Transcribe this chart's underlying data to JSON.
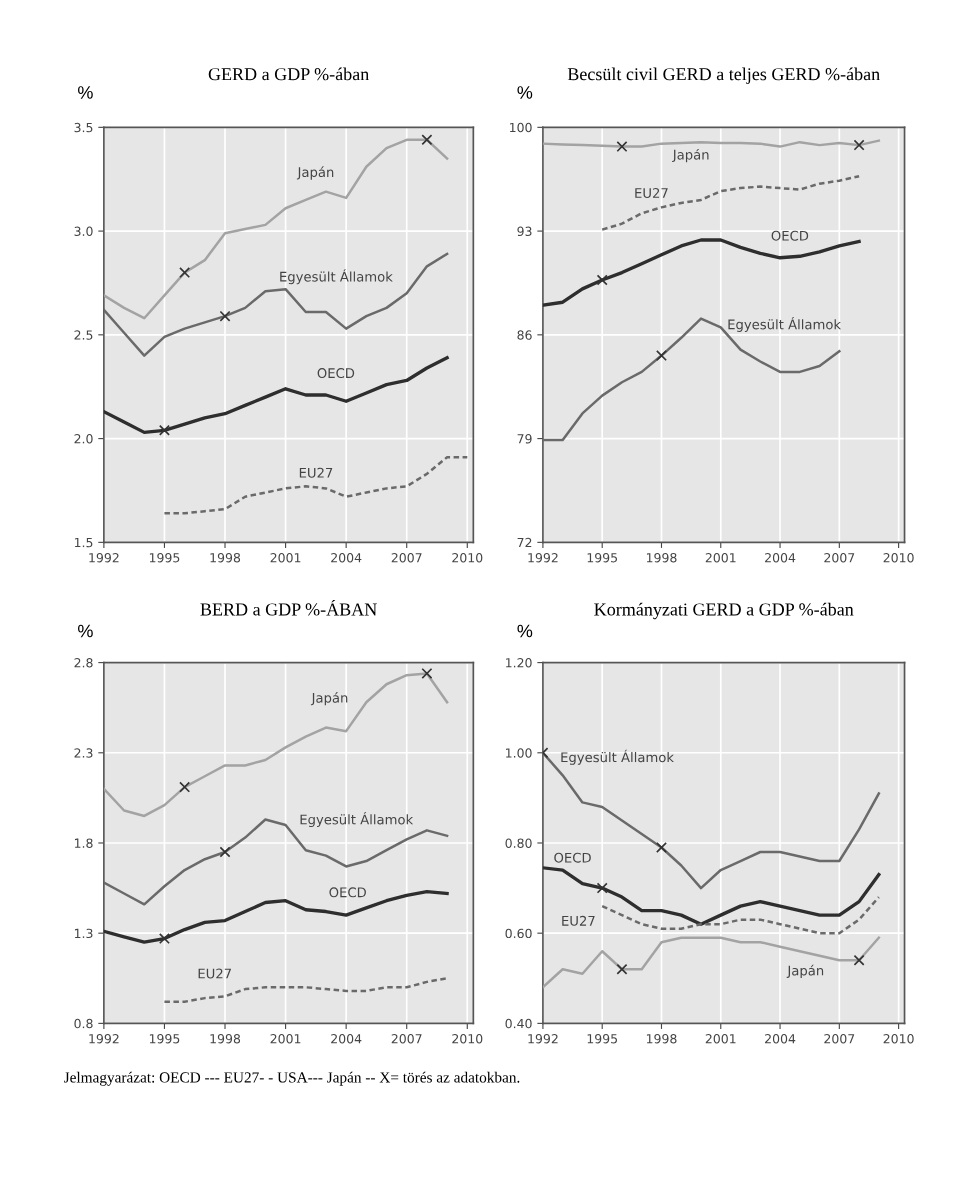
{
  "chart_data": [
    {
      "type": "line",
      "title": "GERD a GDP %-ában",
      "ylabel": "%",
      "xlim": [
        1992,
        2010.3
      ],
      "xticks": [
        1992,
        1995,
        1998,
        2001,
        2004,
        2007,
        2010
      ],
      "ylim": [
        1.5,
        3.5
      ],
      "yticks": [
        {
          "value": 1.5,
          "label": "1.5"
        },
        {
          "value": 2.0,
          "label": "2.0"
        },
        {
          "value": 2.5,
          "label": "2.5"
        },
        {
          "value": 3.0,
          "label": "3.0"
        },
        {
          "value": 3.5,
          "label": "3.5"
        }
      ],
      "grid": true,
      "series": [
        {
          "name": "Japán",
          "color": "#a3a3a3",
          "x": [
            1992,
            1993,
            1994,
            1995,
            1996,
            1997,
            1998,
            1999,
            2000,
            2001,
            2002,
            2003,
            2004,
            2005,
            2006,
            2007,
            2008,
            2009
          ],
          "values": [
            2.69,
            2.63,
            2.58,
            2.69,
            2.8,
            2.86,
            2.99,
            3.01,
            3.03,
            3.11,
            3.15,
            3.19,
            3.16,
            3.31,
            3.4,
            3.44,
            3.44,
            3.35
          ]
        },
        {
          "name": "Egyesült Államok",
          "color": "#6a6a6a",
          "x": [
            1992,
            1993,
            1994,
            1995,
            1996,
            1997,
            1998,
            1999,
            2000,
            2001,
            2002,
            2003,
            2004,
            2005,
            2006,
            2007,
            2008,
            2009
          ],
          "values": [
            2.62,
            2.51,
            2.4,
            2.49,
            2.53,
            2.56,
            2.59,
            2.63,
            2.71,
            2.72,
            2.61,
            2.61,
            2.53,
            2.59,
            2.63,
            2.7,
            2.83,
            2.89
          ]
        },
        {
          "name": "OECD",
          "color": "#2e2e2e",
          "x": [
            1992,
            1993,
            1994,
            1995,
            1996,
            1997,
            1998,
            1999,
            2000,
            2001,
            2002,
            2003,
            2004,
            2005,
            2006,
            2007,
            2008,
            2009
          ],
          "values": [
            2.13,
            2.08,
            2.03,
            2.04,
            2.07,
            2.1,
            2.12,
            2.16,
            2.2,
            2.24,
            2.21,
            2.21,
            2.18,
            2.22,
            2.26,
            2.28,
            2.34,
            2.39
          ]
        },
        {
          "name": "EU27",
          "color": "#6a6a6a",
          "line_style": "dashed",
          "x": [
            1995,
            1996,
            1997,
            1998,
            1999,
            2000,
            2001,
            2002,
            2003,
            2004,
            2005,
            2006,
            2007,
            2008,
            2009,
            2010
          ],
          "values": [
            1.64,
            1.64,
            1.65,
            1.66,
            1.72,
            1.74,
            1.76,
            1.77,
            1.76,
            1.72,
            1.74,
            1.76,
            1.77,
            1.83,
            1.91,
            1.91
          ]
        },
        {
          "type": "scatter",
          "marker": "cross",
          "color": "#333333",
          "x": [
            1996,
            2008,
            1998,
            1995
          ],
          "values": [
            2.8,
            3.44,
            2.59,
            2.04
          ]
        }
      ],
      "legend": false
    },
    {
      "type": "line",
      "title": "Becsült civil GERD a teljes GERD %-ában",
      "ylabel": "%",
      "xlim": [
        1992,
        2010.3
      ],
      "xticks": [
        1992,
        1995,
        1998,
        2001,
        2004,
        2007,
        2010
      ],
      "ylim": [
        72,
        100
      ],
      "yticks": [
        72,
        79,
        86,
        93,
        100
      ],
      "grid": true,
      "series": [
        {
          "name": "Japán",
          "color": "#a3a3a3",
          "x": [
            1992,
            1993,
            1994,
            1995,
            1996,
            1997,
            1998,
            1999,
            2000,
            2001,
            2002,
            2003,
            2004,
            2005,
            2006,
            2007,
            2008,
            2009
          ],
          "values": [
            98.9,
            98.85,
            98.8,
            98.75,
            98.7,
            98.7,
            98.9,
            98.95,
            99.0,
            98.95,
            98.95,
            98.9,
            98.7,
            99.0,
            98.8,
            98.95,
            98.8,
            99.1
          ]
        },
        {
          "name": "EU27",
          "color": "#6a6a6a",
          "line_style": "dashed",
          "x": [
            1995,
            1996,
            1997,
            1998,
            1999,
            2000,
            2001,
            2002,
            2003,
            2004,
            2005,
            2006,
            2007,
            2008
          ],
          "values": [
            93.1,
            93.5,
            94.2,
            94.6,
            94.9,
            95.1,
            95.7,
            95.9,
            96.0,
            95.9,
            95.8,
            96.2,
            96.4,
            96.7
          ]
        },
        {
          "name": "OECD",
          "color": "#2e2e2e",
          "x": [
            1992,
            1993,
            1994,
            1995,
            1996,
            1997,
            1998,
            1999,
            2000,
            2001,
            2002,
            2003,
            2004,
            2005,
            2006,
            2007,
            2008
          ],
          "values": [
            88.0,
            88.2,
            89.1,
            89.7,
            90.2,
            90.8,
            91.4,
            92.0,
            92.4,
            92.4,
            91.9,
            91.5,
            91.2,
            91.3,
            91.6,
            92.0,
            92.3
          ]
        },
        {
          "name": "Egyesült Államok",
          "color": "#6a6a6a",
          "x": [
            1992,
            1993,
            1994,
            1995,
            1996,
            1997,
            1998,
            1999,
            2000,
            2001,
            2002,
            2003,
            2004,
            2005,
            2006,
            2007
          ],
          "values": [
            78.9,
            78.9,
            80.7,
            81.9,
            82.8,
            83.5,
            84.6,
            85.8,
            87.1,
            86.5,
            85.0,
            84.2,
            83.5,
            83.5,
            83.9,
            84.9
          ]
        },
        {
          "type": "scatter",
          "marker": "cross",
          "color": "#333333",
          "x": [
            1996,
            2008,
            1995,
            1998
          ],
          "values": [
            98.7,
            98.8,
            89.7,
            84.6
          ]
        }
      ],
      "legend": false
    },
    {
      "type": "line",
      "title": "BERD a GDP %-ÁBAN",
      "ylabel": "%",
      "xlim": [
        1992,
        2010.3
      ],
      "xticks": [
        1992,
        1995,
        1998,
        2001,
        2004,
        2007,
        2010
      ],
      "ylim": [
        0.8,
        2.8
      ],
      "yticks": [
        0.8,
        1.3,
        1.8,
        2.3,
        2.8
      ],
      "grid": true,
      "series": [
        {
          "name": "Japán",
          "color": "#a3a3a3",
          "x": [
            1992,
            1993,
            1994,
            1995,
            1996,
            1997,
            1998,
            1999,
            2000,
            2001,
            2002,
            2003,
            2004,
            2005,
            2006,
            2007,
            2008,
            2009
          ],
          "values": [
            2.1,
            1.98,
            1.95,
            2.01,
            2.11,
            2.17,
            2.23,
            2.23,
            2.26,
            2.33,
            2.39,
            2.44,
            2.42,
            2.58,
            2.68,
            2.73,
            2.74,
            2.58
          ]
        },
        {
          "name": "Egyesült Államok",
          "color": "#6a6a6a",
          "x": [
            1992,
            1993,
            1994,
            1995,
            1996,
            1997,
            1998,
            1999,
            2000,
            2001,
            2002,
            2003,
            2004,
            2005,
            2006,
            2007,
            2008,
            2009
          ],
          "values": [
            1.58,
            1.52,
            1.46,
            1.56,
            1.65,
            1.71,
            1.75,
            1.83,
            1.93,
            1.9,
            1.76,
            1.73,
            1.67,
            1.7,
            1.76,
            1.82,
            1.87,
            1.84
          ]
        },
        {
          "name": "OECD",
          "color": "#2e2e2e",
          "x": [
            1992,
            1993,
            1994,
            1995,
            1996,
            1997,
            1998,
            1999,
            2000,
            2001,
            2002,
            2003,
            2004,
            2005,
            2006,
            2007,
            2008,
            2009
          ],
          "values": [
            1.31,
            1.28,
            1.25,
            1.27,
            1.32,
            1.36,
            1.37,
            1.42,
            1.47,
            1.48,
            1.43,
            1.42,
            1.4,
            1.44,
            1.48,
            1.51,
            1.53,
            1.52
          ]
        },
        {
          "name": "EU27",
          "color": "#6a6a6a",
          "line_style": "dashed",
          "x": [
            1995,
            1996,
            1997,
            1998,
            1999,
            2000,
            2001,
            2002,
            2003,
            2004,
            2005,
            2006,
            2007,
            2008,
            2009
          ],
          "values": [
            0.92,
            0.92,
            0.94,
            0.95,
            0.99,
            1.0,
            1.0,
            1.0,
            0.99,
            0.98,
            0.98,
            1.0,
            1.0,
            1.03,
            1.05
          ]
        },
        {
          "type": "scatter",
          "marker": "cross",
          "color": "#333333",
          "x": [
            1996,
            2008,
            1998,
            1995
          ],
          "values": [
            2.11,
            2.74,
            1.75,
            1.27
          ]
        }
      ],
      "legend": false
    },
    {
      "type": "line",
      "title": "Kormányzati GERD a GDP %-ában",
      "ylabel": "%",
      "xlim": [
        1992,
        2010.3
      ],
      "xticks": [
        1992,
        1995,
        1998,
        2001,
        2004,
        2007,
        2010
      ],
      "ylim": [
        0.4,
        1.2
      ],
      "yticks": [
        {
          "value": 0.4,
          "label": "0.40"
        },
        {
          "value": 0.6,
          "label": "0.60"
        },
        {
          "value": 0.8,
          "label": "0.80"
        },
        {
          "value": 1.0,
          "label": "1.00"
        },
        {
          "value": 1.2,
          "label": "1.20"
        }
      ],
      "grid": true,
      "series": [
        {
          "name": "Egyesült Államok",
          "color": "#6a6a6a",
          "x": [
            1992,
            1993,
            1994,
            1995,
            1996,
            1997,
            1998,
            1999,
            2000,
            2001,
            2002,
            2003,
            2004,
            2005,
            2006,
            2007,
            2008,
            2009
          ],
          "values": [
            1.0,
            0.95,
            0.89,
            0.88,
            0.85,
            0.82,
            0.79,
            0.75,
            0.7,
            0.74,
            0.76,
            0.78,
            0.78,
            0.77,
            0.76,
            0.76,
            0.83,
            0.91
          ]
        },
        {
          "name": "OECD",
          "color": "#2e2e2e",
          "x": [
            1992,
            1993,
            1994,
            1995,
            1996,
            1997,
            1998,
            1999,
            2000,
            2001,
            2002,
            2003,
            2004,
            2005,
            2006,
            2007,
            2008,
            2009
          ],
          "values": [
            0.745,
            0.74,
            0.71,
            0.7,
            0.68,
            0.65,
            0.65,
            0.64,
            0.62,
            0.64,
            0.66,
            0.67,
            0.66,
            0.65,
            0.64,
            0.64,
            0.67,
            0.73
          ]
        },
        {
          "name": "EU27",
          "color": "#6a6a6a",
          "line_style": "dashed",
          "x": [
            1995,
            1996,
            1997,
            1998,
            1999,
            2000,
            2001,
            2002,
            2003,
            2004,
            2005,
            2006,
            2007,
            2008,
            2009
          ],
          "values": [
            0.66,
            0.64,
            0.62,
            0.61,
            0.61,
            0.62,
            0.62,
            0.63,
            0.63,
            0.62,
            0.61,
            0.6,
            0.6,
            0.63,
            0.68
          ]
        },
        {
          "name": "Japán",
          "color": "#a3a3a3",
          "x": [
            1992,
            1993,
            1994,
            1995,
            1996,
            1997,
            1998,
            1999,
            2000,
            2001,
            2002,
            2003,
            2004,
            2005,
            2006,
            2007,
            2008,
            2009
          ],
          "values": [
            0.48,
            0.52,
            0.51,
            0.56,
            0.52,
            0.52,
            0.58,
            0.59,
            0.59,
            0.59,
            0.58,
            0.58,
            0.57,
            0.56,
            0.55,
            0.54,
            0.54,
            0.59
          ]
        },
        {
          "type": "scatter",
          "marker": "cross",
          "color": "#333333",
          "x": [
            1992,
            1998,
            1995,
            1996,
            2008
          ],
          "values": [
            1.0,
            0.79,
            0.7,
            0.52,
            0.54
          ]
        }
      ],
      "legend": false,
      "annotations": [
        "Jelmagyarázat: OECD --- EU27- - USA--- Japán -- X= törés az adatokban."
      ]
    }
  ]
}
